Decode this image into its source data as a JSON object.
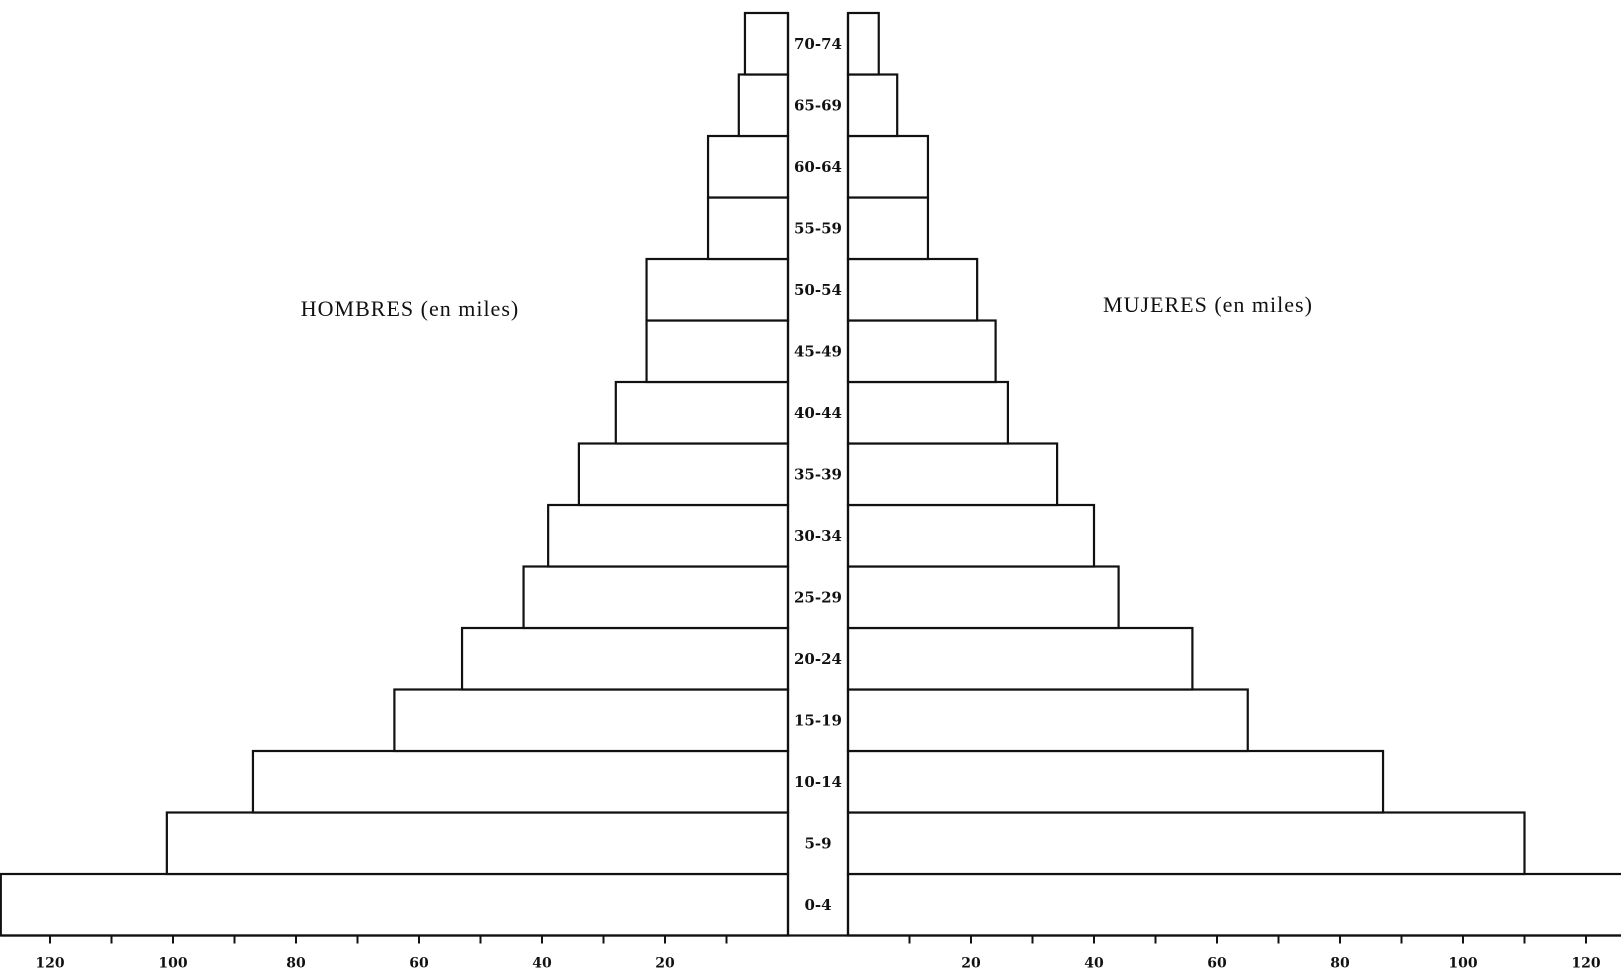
{
  "chart_data": {
    "type": "bar",
    "orientation": "horizontal",
    "layout": "population-pyramid",
    "categories": [
      "0-4",
      "5-9",
      "10-14",
      "15-19",
      "20-24",
      "25-29",
      "30-34",
      "35-39",
      "40-44",
      "45-49",
      "50-54",
      "55-59",
      "60-64",
      "65-69",
      "70-74"
    ],
    "series": [
      {
        "name": "HOMBRES (en miles)",
        "side": "left",
        "values": [
          128,
          101,
          87,
          64,
          53,
          43,
          39,
          34,
          28,
          23,
          23,
          13,
          13,
          8,
          7
        ]
      },
      {
        "name": "MUJERES (en miles)",
        "side": "right",
        "values": [
          128,
          110,
          87,
          65,
          56,
          44,
          40,
          34,
          26,
          24,
          21,
          13,
          13,
          8,
          5
        ]
      }
    ],
    "xlim": [
      0,
      128
    ],
    "left_ticks": [
      {
        "value": 120,
        "label": "120"
      },
      {
        "value": 100,
        "label": "100"
      },
      {
        "value": 80,
        "label": "80"
      },
      {
        "value": 60,
        "label": "60"
      },
      {
        "value": 40,
        "label": "40"
      },
      {
        "value": 20,
        "label": "20"
      }
    ],
    "right_ticks": [
      {
        "value": 20,
        "label": "20"
      },
      {
        "value": 40,
        "label": "40"
      },
      {
        "value": 60,
        "label": "60"
      },
      {
        "value": 80,
        "label": "80"
      },
      {
        "value": 100,
        "label": "100"
      },
      {
        "value": 120,
        "label": "120"
      }
    ],
    "minor_tick_step": 10,
    "grid": false,
    "colors": {
      "bar_fill": "#ffffff",
      "bar_stroke": "#111111"
    }
  }
}
